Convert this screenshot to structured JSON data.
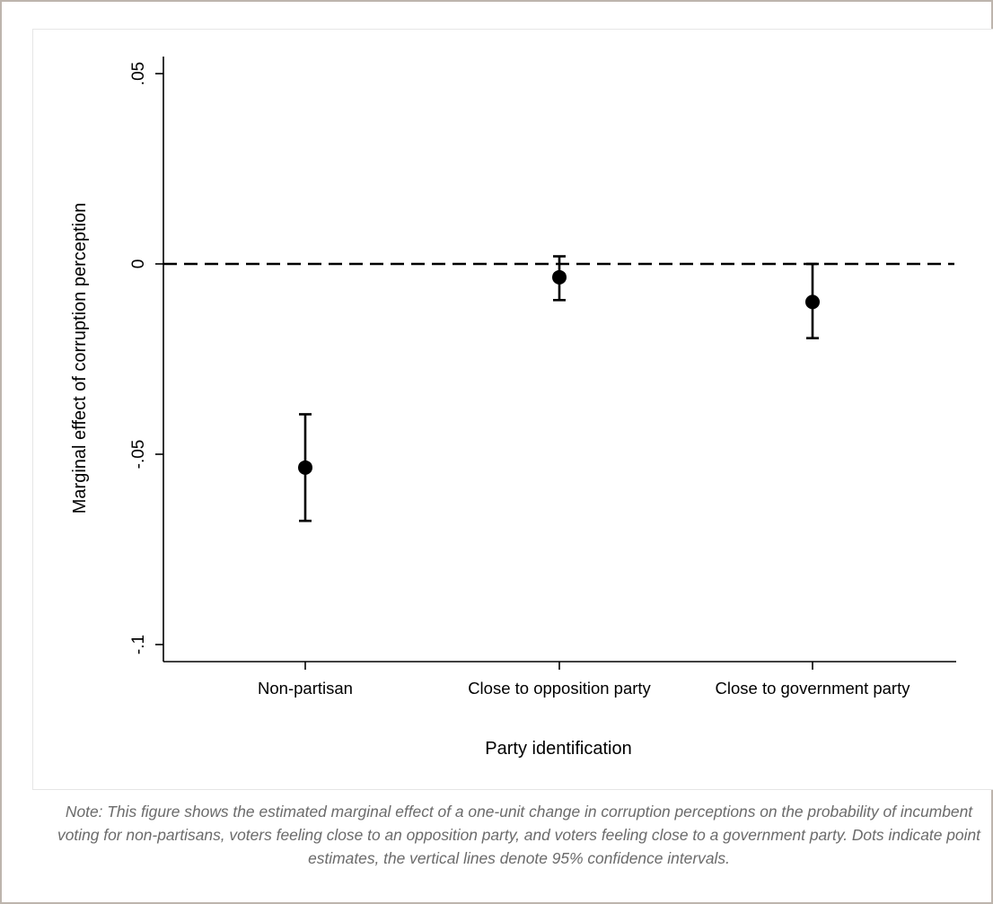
{
  "chart_data": {
    "type": "scatter",
    "categories": [
      "Non-partisan",
      "Close to opposition party",
      "Close to government party"
    ],
    "points": [
      {
        "category": "Non-partisan",
        "estimate": -0.0535,
        "ci_low": -0.0675,
        "ci_high": -0.0395
      },
      {
        "category": "Close to opposition party",
        "estimate": -0.0035,
        "ci_low": -0.0095,
        "ci_high": 0.002
      },
      {
        "category": "Close to government party",
        "estimate": -0.01,
        "ci_low": -0.0195,
        "ci_high": 0.0
      }
    ],
    "title": "",
    "xlabel": "Party identification",
    "ylabel": "Marginal effect of corruption perception",
    "ylim": [
      -0.105,
      0.055
    ],
    "yticks": [
      {
        "value": 0.05,
        "label": ".05"
      },
      {
        "value": 0,
        "label": "0"
      },
      {
        "value": -0.05,
        "label": "-.05"
      },
      {
        "value": -0.1,
        "label": "-.1"
      }
    ],
    "reference_line": {
      "value": 0,
      "style": "dashed"
    },
    "grid": false,
    "legend": "none",
    "marker_color": "#000000"
  },
  "note": "Note: This figure shows the estimated marginal effect of a one-unit change in corruption perceptions on the probability of incumbent voting for non-partisans, voters feeling close to an opposition party, and voters feeling close to a government party. Dots indicate point estimates, the vertical lines denote 95% confidence intervals."
}
